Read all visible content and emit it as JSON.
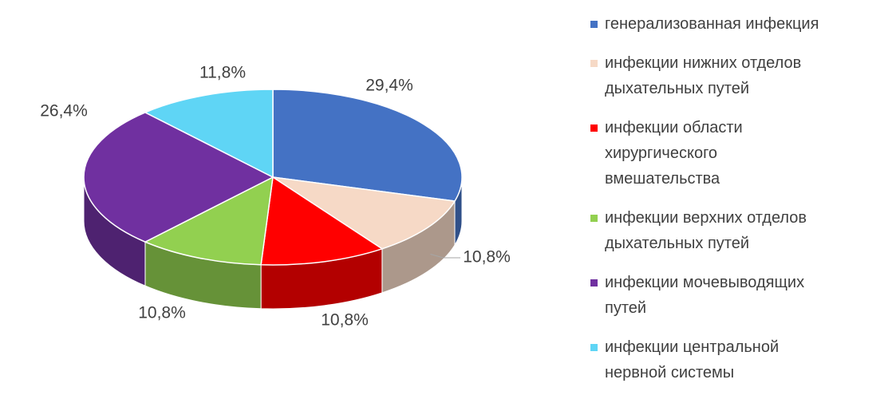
{
  "chart_data": {
    "type": "pie3d",
    "categories": [
      "генерализованная инфекция",
      "инфекции нижних отделов дыхательных путей",
      "инфекции области хирургического вмешательства",
      "инфекции верхних отделов дыхательных путей",
      "инфекции мочевыводящих путей",
      "инфекции центральной нервной системы"
    ],
    "values": [
      29.4,
      10.8,
      10.8,
      10.8,
      26.4,
      11.8
    ],
    "value_labels": [
      "29,4%",
      "10,8%",
      "10,8%",
      "10,8%",
      "26,4%",
      "11,8%"
    ],
    "colors": [
      "#4472c4",
      "#f6d9c6",
      "#ff0000",
      "#92d050",
      "#7030a0",
      "#5fd5f5"
    ],
    "legend": "right"
  }
}
